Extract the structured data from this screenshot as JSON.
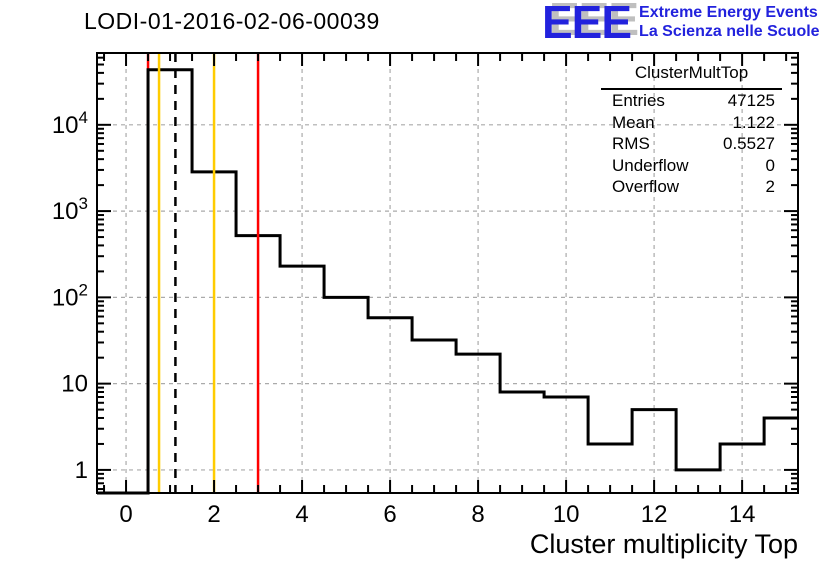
{
  "title": "LODI-01-2016-02-06-00039",
  "logo": {
    "acronym": "EEE",
    "line1": "Extreme Energy Events",
    "line2": "La Scienza nelle Scuole",
    "text_color": "#2222dd",
    "shadow_color": "#bfbfbf"
  },
  "stats_box": {
    "title": "ClusterMultTop",
    "rows": [
      {
        "label": "Entries",
        "value": "47125"
      },
      {
        "label": "Mean",
        "value": "1.122"
      },
      {
        "label": "RMS",
        "value": "0.5527"
      },
      {
        "label": "Underflow",
        "value": "0"
      },
      {
        "label": "Overflow",
        "value": "2"
      }
    ]
  },
  "chart_data": {
    "type": "bar",
    "title": "LODI-01-2016-02-06-00039",
    "histogram_name": "ClusterMultTop",
    "xlabel": "Cluster multiplicity Top",
    "ylabel": "",
    "y_scale": "log",
    "bin_width": 1,
    "bin_centers": [
      0,
      1,
      2,
      3,
      4,
      5,
      6,
      7,
      8,
      9,
      10,
      11,
      12,
      13,
      14,
      15
    ],
    "values": [
      0,
      43500,
      2850,
      520,
      230,
      100,
      58,
      32,
      22,
      8,
      7,
      2,
      5,
      1,
      2,
      4
    ],
    "xlim": [
      -0.66,
      15.27
    ],
    "ylim": [
      0.54,
      68000
    ],
    "x_major_ticks": [
      0,
      2,
      4,
      6,
      8,
      10,
      12,
      14
    ],
    "x_tick_labels": [
      "0",
      "2",
      "4",
      "6",
      "8",
      "10",
      "12",
      "14"
    ],
    "x_minor_step": 0.5,
    "y_major_ticks": [
      1,
      10,
      100,
      1000,
      10000
    ],
    "y_tick_labels": [
      "1",
      "10",
      "10^2",
      "10^3",
      "10^4"
    ],
    "grid": "dashed",
    "grid_color": "#aaaaaa",
    "line_color": "#000000",
    "frame_color": "#000000",
    "marker_lines": [
      {
        "x": 0.5,
        "color": "#ff0000",
        "style": "solid",
        "layer": "behind"
      },
      {
        "x": 0.75,
        "color": "#ffcc00",
        "style": "solid",
        "layer": "front"
      },
      {
        "x": 1.122,
        "color": "#000000",
        "style": "dashed",
        "layer": "front"
      },
      {
        "x": 2,
        "color": "#ffcc00",
        "style": "solid",
        "layer": "front"
      },
      {
        "x": 3,
        "color": "#ff0000",
        "style": "solid",
        "layer": "front"
      }
    ]
  }
}
